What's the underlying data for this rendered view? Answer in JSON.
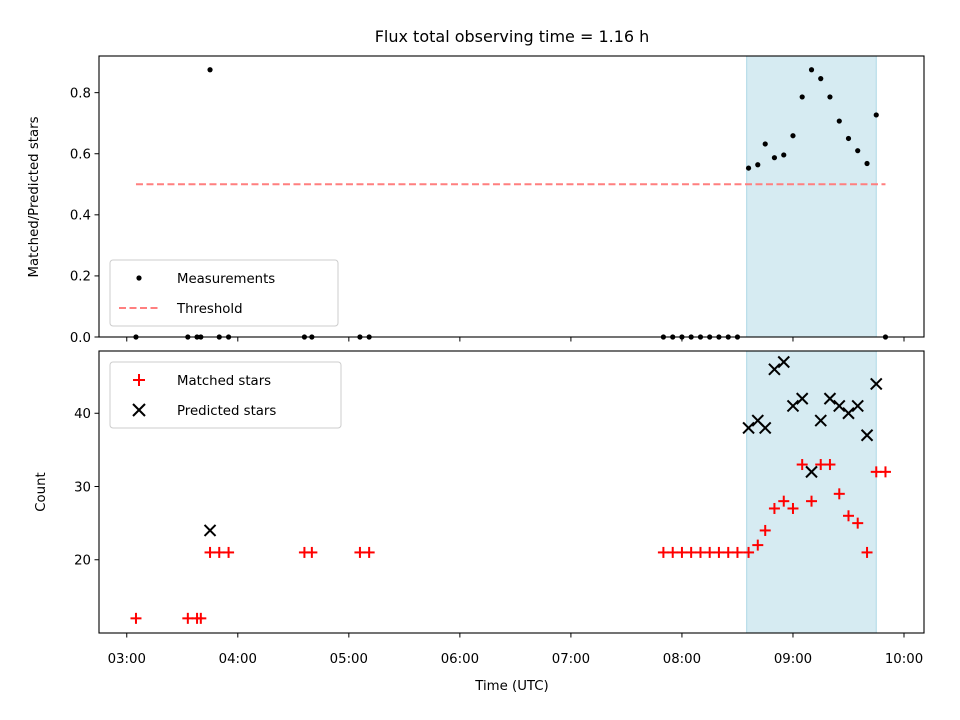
{
  "chart_data": {
    "type": "scatter",
    "title": "Flux total observing time = 1.16 h",
    "xlabel": "Time (UTC)",
    "x_unit": "hours_utc",
    "xlim": [
      2.75,
      10.18
    ],
    "xticks": [
      3,
      4,
      5,
      6,
      7,
      8,
      9,
      10
    ],
    "xtick_labels": [
      "03:00",
      "04:00",
      "05:00",
      "06:00",
      "07:00",
      "08:00",
      "09:00",
      "10:00"
    ],
    "highlight_span": [
      8.583,
      9.75
    ],
    "panels": [
      {
        "name": "ratio",
        "ylabel": "Matched/Predicted stars",
        "ylim": [
          0,
          0.92
        ],
        "yticks": [
          0,
          0.2,
          0.4,
          0.6,
          0.8
        ],
        "ytick_labels": [
          "0.0",
          "0.2",
          "0.4",
          "0.6",
          "0.8"
        ],
        "legend_position": "lower-left",
        "series": [
          {
            "name": "Measurements",
            "marker": "dot",
            "color": "#000000",
            "points": [
              [
                3.083,
                0
              ],
              [
                3.55,
                0
              ],
              [
                3.633,
                0
              ],
              [
                3.667,
                0
              ],
              [
                3.75,
                0.875
              ],
              [
                3.833,
                0
              ],
              [
                3.917,
                0
              ],
              [
                4.6,
                0
              ],
              [
                4.667,
                0
              ],
              [
                5.1,
                0
              ],
              [
                5.183,
                0
              ],
              [
                7.833,
                0
              ],
              [
                7.917,
                0
              ],
              [
                8.0,
                0
              ],
              [
                8.083,
                0
              ],
              [
                8.167,
                0
              ],
              [
                8.25,
                0
              ],
              [
                8.333,
                0
              ],
              [
                8.417,
                0
              ],
              [
                8.5,
                0
              ],
              [
                8.6,
                0.553
              ],
              [
                8.683,
                0.564
              ],
              [
                8.75,
                0.632
              ],
              [
                8.833,
                0.587
              ],
              [
                8.917,
                0.596
              ],
              [
                9.0,
                0.659
              ],
              [
                9.083,
                0.786
              ],
              [
                9.167,
                0.875
              ],
              [
                9.25,
                0.846
              ],
              [
                9.333,
                0.786
              ],
              [
                9.417,
                0.707
              ],
              [
                9.5,
                0.65
              ],
              [
                9.583,
                0.61
              ],
              [
                9.667,
                0.568
              ],
              [
                9.75,
                0.727
              ],
              [
                9.833,
                0
              ]
            ]
          },
          {
            "name": "Threshold",
            "style": "dashed-line",
            "color": "#ff7f7f",
            "x": [
              3.083,
              9.833
            ],
            "y": [
              0.5,
              0.5
            ]
          }
        ]
      },
      {
        "name": "count",
        "ylabel": "Count",
        "ylim": [
          10,
          48.5
        ],
        "yticks": [
          20,
          30,
          40
        ],
        "ytick_labels": [
          "20",
          "30",
          "40"
        ],
        "legend_position": "upper-left",
        "series": [
          {
            "name": "Matched stars",
            "marker": "plus",
            "color": "#ff0000",
            "points": [
              [
                3.083,
                12
              ],
              [
                3.55,
                12
              ],
              [
                3.633,
                12
              ],
              [
                3.667,
                12
              ],
              [
                3.75,
                21
              ],
              [
                3.833,
                21
              ],
              [
                3.917,
                21
              ],
              [
                4.6,
                21
              ],
              [
                4.667,
                21
              ],
              [
                5.1,
                21
              ],
              [
                5.183,
                21
              ],
              [
                7.833,
                21
              ],
              [
                7.917,
                21
              ],
              [
                8.0,
                21
              ],
              [
                8.083,
                21
              ],
              [
                8.167,
                21
              ],
              [
                8.25,
                21
              ],
              [
                8.333,
                21
              ],
              [
                8.417,
                21
              ],
              [
                8.5,
                21
              ],
              [
                8.6,
                21
              ],
              [
                8.683,
                22
              ],
              [
                8.75,
                24
              ],
              [
                8.833,
                27
              ],
              [
                8.917,
                28
              ],
              [
                9.0,
                27
              ],
              [
                9.083,
                33
              ],
              [
                9.167,
                28
              ],
              [
                9.25,
                33
              ],
              [
                9.333,
                33
              ],
              [
                9.417,
                29
              ],
              [
                9.5,
                26
              ],
              [
                9.583,
                25
              ],
              [
                9.667,
                21
              ],
              [
                9.75,
                32
              ],
              [
                9.833,
                32
              ]
            ]
          },
          {
            "name": "Predicted stars",
            "marker": "x",
            "color": "#000000",
            "points": [
              [
                3.75,
                24
              ],
              [
                8.6,
                38
              ],
              [
                8.683,
                39
              ],
              [
                8.75,
                38
              ],
              [
                8.833,
                46
              ],
              [
                8.917,
                47
              ],
              [
                9.0,
                41
              ],
              [
                9.083,
                42
              ],
              [
                9.167,
                32
              ],
              [
                9.25,
                39
              ],
              [
                9.333,
                42
              ],
              [
                9.417,
                41
              ],
              [
                9.5,
                40
              ],
              [
                9.583,
                41
              ],
              [
                9.667,
                37
              ],
              [
                9.75,
                44
              ]
            ]
          }
        ]
      }
    ]
  }
}
